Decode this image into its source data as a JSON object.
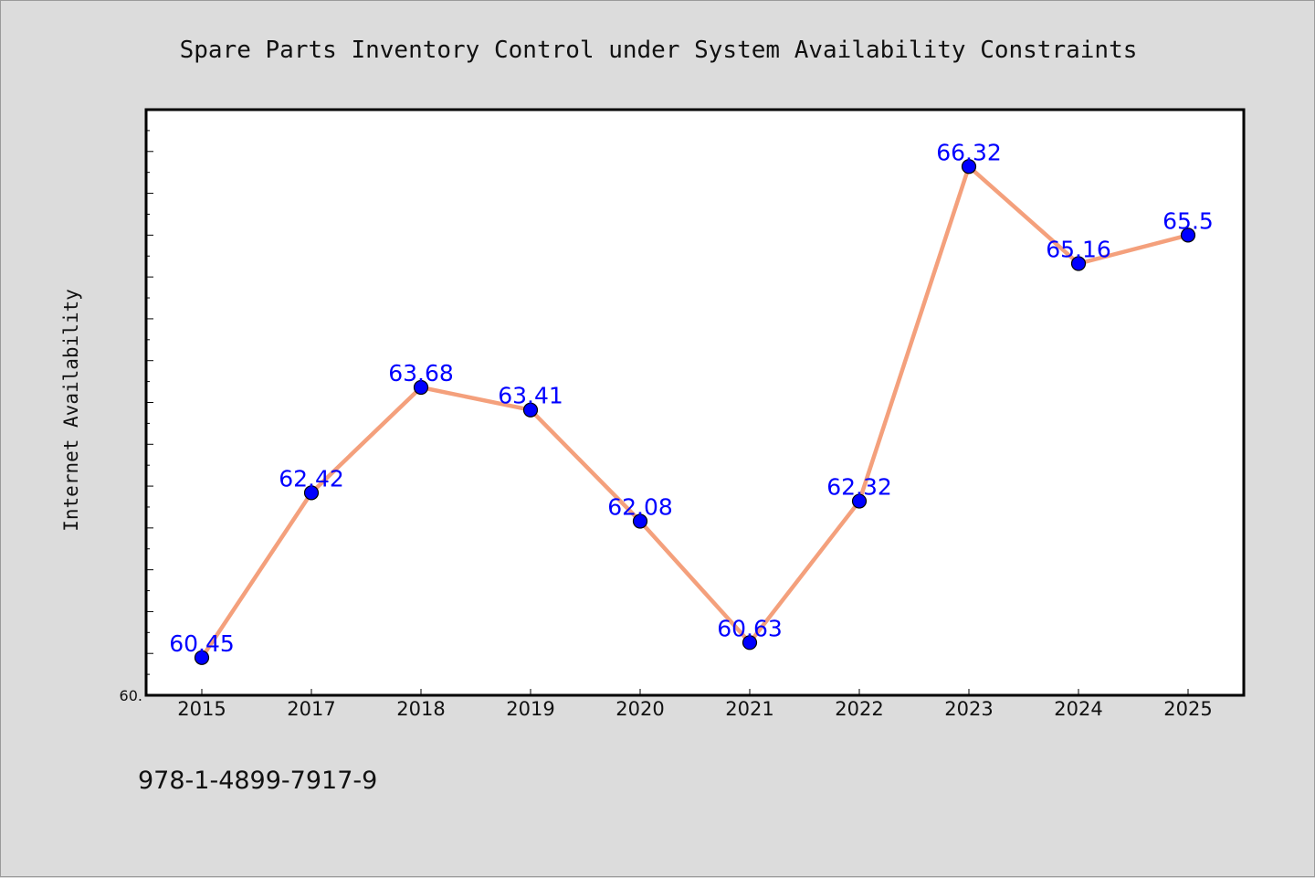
{
  "chart_data": {
    "type": "line",
    "title": "Spare Parts Inventory Control under System Availability Constraints",
    "ylabel": "Internet Availability",
    "xlabel": "",
    "categories": [
      "2015",
      "2017",
      "2018",
      "2019",
      "2020",
      "2021",
      "2022",
      "2023",
      "2024",
      "2025"
    ],
    "series": [
      {
        "values": [
          60.45,
          62.42,
          63.68,
          63.41,
          62.08,
          60.63,
          62.32,
          66.32,
          65.16,
          65.5
        ],
        "data_labels": [
          "60.45",
          "62.42",
          "63.68",
          "63.41",
          "62.08",
          "60.63",
          "62.32",
          "66.32",
          "65.16",
          "65.5"
        ],
        "line_color": "#f4a07c",
        "marker_color": "#0000ff"
      }
    ],
    "ylim": [
      60.0,
      67.0
    ],
    "ytick_labels": [
      "60."
    ],
    "grid": false,
    "legend": "none"
  },
  "footer": {
    "isbn": "978-1-4899-7917-9"
  }
}
